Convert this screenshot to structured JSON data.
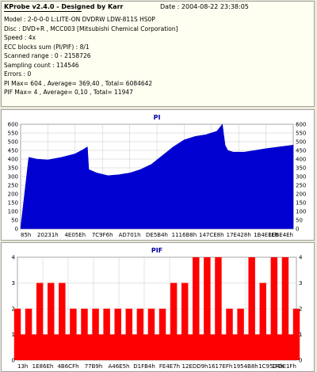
{
  "header": {
    "title": "KProbe v2.4.0 - Designed by Karr",
    "date": "Date : 2004-08-22 23:38:05"
  },
  "info": [
    "Model : 2-0-0-0 L:LITE-ON DVDRW LDW-811S   HS0P",
    "Disc : DVD+R , MCC003 [Mitsubishi Chemical Corporation]",
    "Speed : 4x",
    "ECC blocks sum (PI/PIF) : 8/1",
    "Scanned range : 0 - 2158726",
    "Sampling count : 114546",
    "Errors : 0",
    "PI Max= 604 , Average= 369,40 , Total= 6084642",
    "PIF Max= 4 , Average= 0,10 , Total= 11947"
  ],
  "colors": {
    "pi": "#0000d0",
    "pif": "#ff0000",
    "title": "#0000a0"
  },
  "chart_data": [
    {
      "type": "area",
      "title": "PI",
      "ylim": [
        0,
        600
      ],
      "yticks": [
        0,
        50,
        100,
        150,
        200,
        250,
        300,
        350,
        400,
        450,
        500,
        550,
        600
      ],
      "xticks": [
        "85h",
        "20231h",
        "4E05Eh",
        "7C9F6h",
        "AD701h",
        "DE5B4h",
        "1116B8h",
        "147CE8h",
        "17E428h",
        "1B4EFEh",
        "1EBE4Eh"
      ],
      "grid": true,
      "series": [
        {
          "x": [
            0,
            3,
            6,
            10,
            15,
            20,
            23,
            24.5,
            25,
            28,
            32,
            36,
            40,
            44,
            48,
            52,
            56,
            60,
            64,
            68,
            72,
            74,
            75,
            76,
            78,
            82,
            86,
            90,
            95,
            100
          ],
          "values": [
            0,
            410,
            400,
            395,
            410,
            430,
            455,
            470,
            340,
            320,
            305,
            310,
            320,
            340,
            370,
            420,
            470,
            510,
            530,
            540,
            560,
            600,
            480,
            450,
            440,
            440,
            450,
            460,
            470,
            480
          ]
        }
      ]
    },
    {
      "type": "bar",
      "title": "PIF",
      "ylim": [
        0,
        4
      ],
      "yticks": [
        0,
        1,
        2,
        3,
        4
      ],
      "xticks": [
        "13h",
        "1E86Eh",
        "4B6CFh",
        "77B9h",
        "A46E5h",
        "D1FB4h",
        "FE4E7h",
        "12EDD9h",
        "1617EFh",
        "1954B8h",
        "1C9504h",
        "1FDE1Fh"
      ],
      "grid": true,
      "series": [
        {
          "x": [
            0,
            4,
            8,
            12,
            16,
            20,
            24,
            28,
            32,
            36,
            40,
            44,
            48,
            52,
            56,
            60,
            64,
            68,
            72,
            76,
            80,
            84,
            88,
            92,
            96,
            100
          ],
          "values": [
            2,
            2,
            3,
            3,
            3,
            2,
            2,
            2,
            2,
            2,
            2,
            2,
            2,
            2,
            3,
            3,
            4,
            4,
            4,
            2,
            2,
            4,
            3,
            4,
            4,
            2
          ]
        }
      ]
    }
  ]
}
